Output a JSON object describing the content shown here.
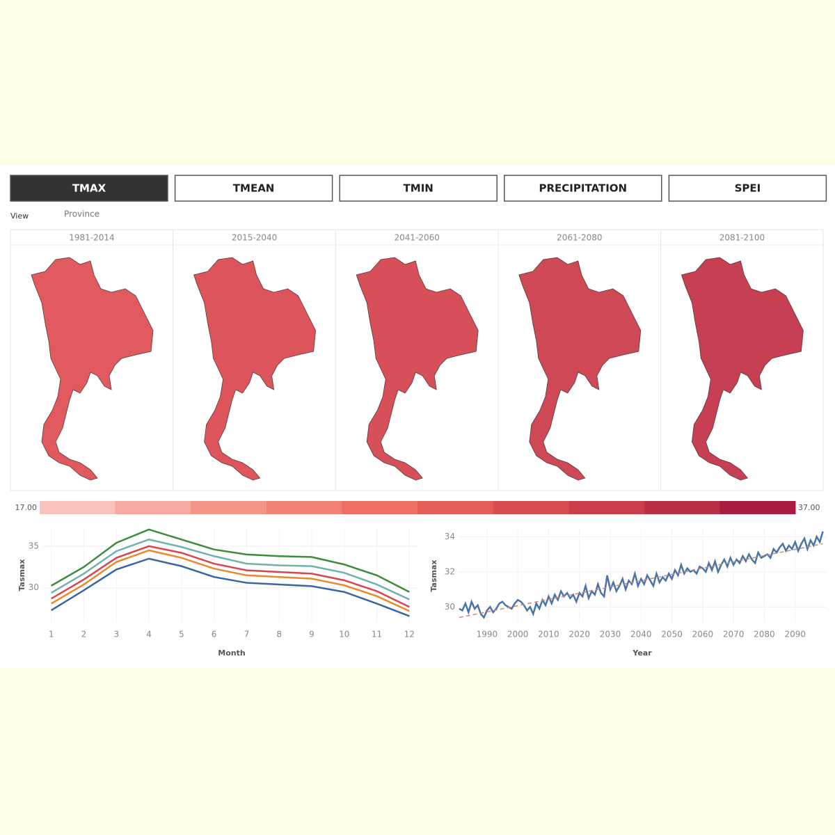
{
  "tabs": [
    "TMAX",
    "TMEAN",
    "TMIN",
    "PRECIPITATION",
    "SPEI"
  ],
  "view_label": "View",
  "view_value": "Province",
  "maps": [
    {
      "period": "1981-2014",
      "color": "#e05a5f"
    },
    {
      "period": "2015-2040",
      "color": "#dc555c"
    },
    {
      "period": "2041-2060",
      "color": "#d64f59"
    },
    {
      "period": "2061-2080",
      "color": "#cf4855"
    },
    {
      "period": "2081-2100",
      "color": "#c73f52"
    }
  ],
  "legend": {
    "min": {
      "value": 17,
      "label": "17.00"
    },
    "max": {
      "value": 37,
      "label": "37.00"
    },
    "colors": [
      "#f9c3bd",
      "#f7a89f",
      "#f59587",
      "#f18273",
      "#ec6f62",
      "#e45d57",
      "#d94d50",
      "#cc3d4a",
      "#bc2e45",
      "#a81c3f"
    ]
  },
  "chart_data": [
    {
      "type": "line",
      "x_label": "Month",
      "y_label": "Tasmax",
      "x": [
        1,
        2,
        3,
        4,
        5,
        6,
        7,
        8,
        9,
        10,
        11,
        12
      ],
      "xlim": [
        0.75,
        12.25
      ],
      "xticks": [
        1,
        2,
        3,
        4,
        5,
        6,
        7,
        8,
        9,
        10,
        11,
        12
      ],
      "ylim": [
        25.8,
        37.25
      ],
      "yticks": [
        30,
        35
      ],
      "grid": true,
      "series": [
        {
          "color": "#3d8b3d",
          "values": [
            30.25,
            32.5,
            35.4,
            37.0,
            35.8,
            34.6,
            34.0,
            33.8,
            33.7,
            32.8,
            31.5,
            29.5
          ]
        },
        {
          "color": "#6fb3a8",
          "values": [
            29.4,
            31.7,
            34.4,
            35.8,
            34.9,
            33.8,
            32.9,
            32.7,
            32.6,
            31.8,
            30.4,
            28.6
          ]
        },
        {
          "color": "#d9454f",
          "values": [
            28.7,
            31.0,
            33.6,
            35.0,
            34.2,
            32.9,
            32.1,
            31.9,
            31.7,
            30.9,
            29.6,
            27.7
          ]
        },
        {
          "color": "#e8892b",
          "values": [
            28.1,
            30.4,
            33.1,
            34.5,
            33.6,
            32.3,
            31.5,
            31.3,
            31.1,
            30.3,
            29.0,
            27.2
          ]
        },
        {
          "color": "#3a65a0",
          "values": [
            27.3,
            29.7,
            32.2,
            33.5,
            32.6,
            31.3,
            30.6,
            30.4,
            30.2,
            29.5,
            28.1,
            26.6
          ]
        }
      ]
    },
    {
      "type": "line",
      "x_label": "Year",
      "y_label": "Tasmax",
      "x": [
        1981,
        1982,
        1983,
        1984,
        1985,
        1986,
        1987,
        1988,
        1989,
        1990,
        1991,
        1992,
        1993,
        1994,
        1995,
        1996,
        1997,
        1998,
        1999,
        2000,
        2001,
        2002,
        2003,
        2004,
        2005,
        2006,
        2007,
        2008,
        2009,
        2010,
        2011,
        2012,
        2013,
        2014,
        2015,
        2016,
        2017,
        2018,
        2019,
        2020,
        2021,
        2022,
        2023,
        2024,
        2025,
        2026,
        2027,
        2028,
        2029,
        2030,
        2031,
        2032,
        2033,
        2034,
        2035,
        2036,
        2037,
        2038,
        2039,
        2040,
        2041,
        2042,
        2043,
        2044,
        2045,
        2046,
        2047,
        2048,
        2049,
        2050,
        2051,
        2052,
        2053,
        2054,
        2055,
        2056,
        2057,
        2058,
        2059,
        2060,
        2061,
        2062,
        2063,
        2064,
        2065,
        2066,
        2067,
        2068,
        2069,
        2070,
        2071,
        2072,
        2073,
        2074,
        2075,
        2076,
        2077,
        2078,
        2079,
        2080,
        2081,
        2082,
        2083,
        2084,
        2085,
        2086,
        2087,
        2088,
        2089,
        2090,
        2091,
        2092,
        2093,
        2094,
        2095,
        2096,
        2097,
        2098,
        2099
      ],
      "xlim": [
        1981,
        2100
      ],
      "xticks": [
        1990,
        2000,
        2010,
        2020,
        2030,
        2040,
        2050,
        2060,
        2070,
        2080,
        2090
      ],
      "ylim": [
        29.1,
        34.45
      ],
      "yticks": [
        30,
        32,
        34
      ],
      "grid": true,
      "series": [
        {
          "color": "#4a74a8",
          "values": [
            29.9,
            29.8,
            30.2,
            29.7,
            30.3,
            29.9,
            30.1,
            29.6,
            29.4,
            29.8,
            30.0,
            29.7,
            29.9,
            30.2,
            30.3,
            30.1,
            30.0,
            29.9,
            30.2,
            30.4,
            30.3,
            30.1,
            29.8,
            30.0,
            29.6,
            30.2,
            29.9,
            30.4,
            30.1,
            30.6,
            30.2,
            30.7,
            30.4,
            30.9,
            30.6,
            30.8,
            30.5,
            30.7,
            30.3,
            30.8,
            30.6,
            31.2,
            30.5,
            30.9,
            30.7,
            31.3,
            30.8,
            30.6,
            31.8,
            31.0,
            31.4,
            30.9,
            31.2,
            31.6,
            31.0,
            31.5,
            31.3,
            31.9,
            31.2,
            31.6,
            31.3,
            31.8,
            31.5,
            31.2,
            31.9,
            31.4,
            31.7,
            31.5,
            31.9,
            31.6,
            32.1,
            31.8,
            32.4,
            31.9,
            32.2,
            32.0,
            32.1,
            31.9,
            32.3,
            32.2,
            32.0,
            32.5,
            32.1,
            32.6,
            32.0,
            32.4,
            32.7,
            32.3,
            32.8,
            32.4,
            32.7,
            32.5,
            32.9,
            32.6,
            33.0,
            32.7,
            32.5,
            33.1,
            32.8,
            32.9,
            33.0,
            32.8,
            33.3,
            33.1,
            33.4,
            33.6,
            33.2,
            33.5,
            33.3,
            33.7,
            33.2,
            33.6,
            33.9,
            33.3,
            33.8,
            33.5,
            34.0,
            33.7,
            34.3
          ]
        },
        {
          "color": "#c98a7a",
          "dashed": true,
          "x": [
            1981,
            2099
          ],
          "values": [
            29.4,
            33.6
          ]
        }
      ]
    }
  ]
}
